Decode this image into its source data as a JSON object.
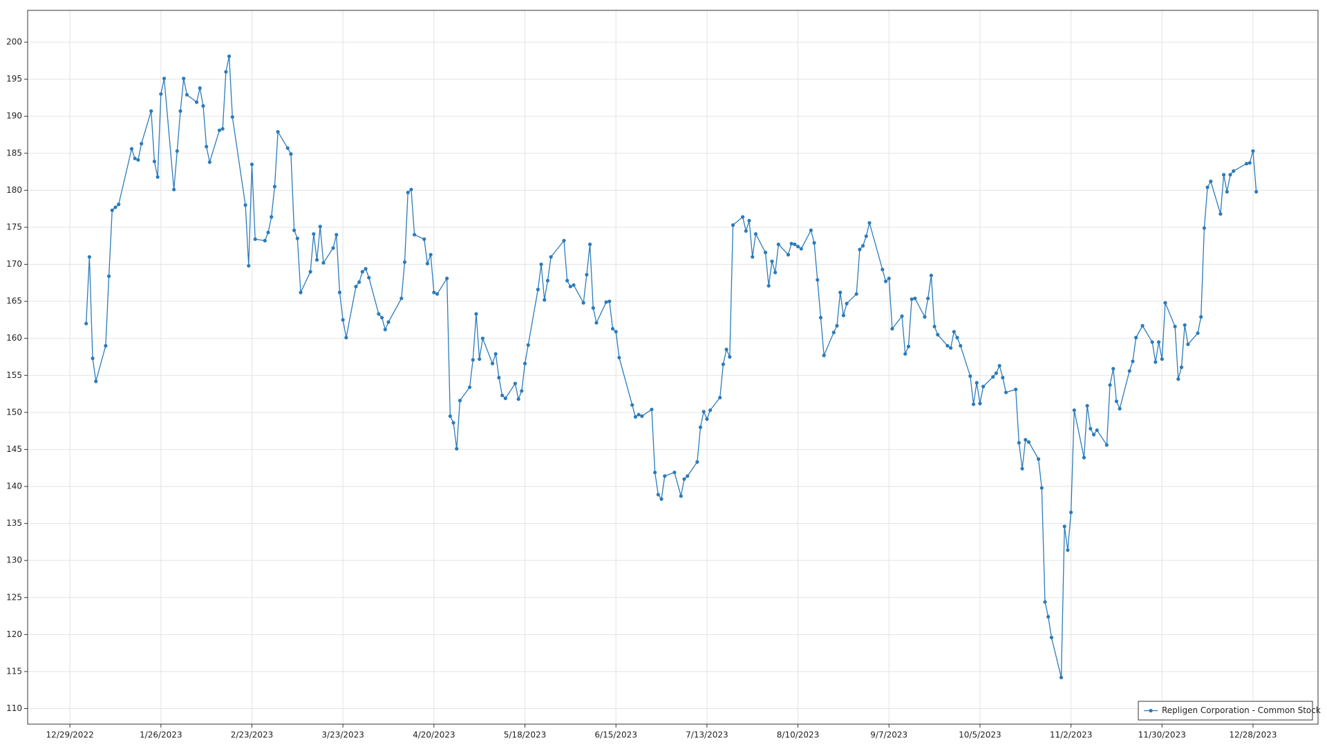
{
  "chart_data": {
    "type": "line",
    "x": [
      "1/3/2023",
      "1/4/2023",
      "1/5/2023",
      "1/6/2023",
      "1/9/2023",
      "1/10/2023",
      "1/11/2023",
      "1/12/2023",
      "1/13/2023",
      "1/17/2023",
      "1/18/2023",
      "1/19/2023",
      "1/20/2023",
      "1/23/2023",
      "1/24/2023",
      "1/25/2023",
      "1/26/2023",
      "1/27/2023",
      "1/30/2023",
      "1/31/2023",
      "2/1/2023",
      "2/2/2023",
      "2/3/2023",
      "2/6/2023",
      "2/7/2023",
      "2/8/2023",
      "2/9/2023",
      "2/10/2023",
      "2/13/2023",
      "2/14/2023",
      "2/15/2023",
      "2/16/2023",
      "2/17/2023",
      "2/21/2023",
      "2/22/2023",
      "2/23/2023",
      "2/24/2023",
      "2/27/2023",
      "2/28/2023",
      "3/1/2023",
      "3/2/2023",
      "3/3/2023",
      "3/6/2023",
      "3/7/2023",
      "3/8/2023",
      "3/9/2023",
      "3/10/2023",
      "3/13/2023",
      "3/14/2023",
      "3/15/2023",
      "3/16/2023",
      "3/17/2023",
      "3/20/2023",
      "3/21/2023",
      "3/22/2023",
      "3/23/2023",
      "3/24/2023",
      "3/27/2023",
      "3/28/2023",
      "3/29/2023",
      "3/30/2023",
      "3/31/2023",
      "4/3/2023",
      "4/4/2023",
      "4/5/2023",
      "4/6/2023",
      "4/10/2023",
      "4/11/2023",
      "4/12/2023",
      "4/13/2023",
      "4/14/2023",
      "4/17/2023",
      "4/18/2023",
      "4/19/2023",
      "4/20/2023",
      "4/21/2023",
      "4/24/2023",
      "4/25/2023",
      "4/26/2023",
      "4/27/2023",
      "4/28/2023",
      "5/1/2023",
      "5/2/2023",
      "5/3/2023",
      "5/4/2023",
      "5/5/2023",
      "5/8/2023",
      "5/9/2023",
      "5/10/2023",
      "5/11/2023",
      "5/12/2023",
      "5/15/2023",
      "5/16/2023",
      "5/17/2023",
      "5/18/2023",
      "5/19/2023",
      "5/22/2023",
      "5/23/2023",
      "5/24/2023",
      "5/25/2023",
      "5/26/2023",
      "5/30/2023",
      "5/31/2023",
      "6/1/2023",
      "6/2/2023",
      "6/5/2023",
      "6/6/2023",
      "6/7/2023",
      "6/8/2023",
      "6/9/2023",
      "6/12/2023",
      "6/13/2023",
      "6/14/2023",
      "6/15/2023",
      "6/16/2023",
      "6/20/2023",
      "6/21/2023",
      "6/22/2023",
      "6/23/2023",
      "6/26/2023",
      "6/27/2023",
      "6/28/2023",
      "6/29/2023",
      "6/30/2023",
      "7/3/2023",
      "7/5/2023",
      "7/6/2023",
      "7/7/2023",
      "7/10/2023",
      "7/11/2023",
      "7/12/2023",
      "7/13/2023",
      "7/14/2023",
      "7/17/2023",
      "7/18/2023",
      "7/19/2023",
      "7/20/2023",
      "7/21/2023",
      "7/24/2023",
      "7/25/2023",
      "7/26/2023",
      "7/27/2023",
      "7/28/2023",
      "7/31/2023",
      "8/1/2023",
      "8/2/2023",
      "8/3/2023",
      "8/4/2023",
      "8/7/2023",
      "8/8/2023",
      "8/9/2023",
      "8/10/2023",
      "8/11/2023",
      "8/14/2023",
      "8/15/2023",
      "8/16/2023",
      "8/17/2023",
      "8/18/2023",
      "8/21/2023",
      "8/22/2023",
      "8/23/2023",
      "8/24/2023",
      "8/25/2023",
      "8/28/2023",
      "8/29/2023",
      "8/30/2023",
      "8/31/2023",
      "9/1/2023",
      "9/5/2023",
      "9/6/2023",
      "9/7/2023",
      "9/8/2023",
      "9/11/2023",
      "9/12/2023",
      "9/13/2023",
      "9/14/2023",
      "9/15/2023",
      "9/18/2023",
      "9/19/2023",
      "9/20/2023",
      "9/21/2023",
      "9/22/2023",
      "9/25/2023",
      "9/26/2023",
      "9/27/2023",
      "9/28/2023",
      "9/29/2023",
      "10/2/2023",
      "10/3/2023",
      "10/4/2023",
      "10/5/2023",
      "10/6/2023",
      "10/9/2023",
      "10/10/2023",
      "10/11/2023",
      "10/12/2023",
      "10/13/2023",
      "10/16/2023",
      "10/17/2023",
      "10/18/2023",
      "10/19/2023",
      "10/20/2023",
      "10/23/2023",
      "10/24/2023",
      "10/25/2023",
      "10/26/2023",
      "10/27/2023",
      "10/30/2023",
      "10/31/2023",
      "11/1/2023",
      "11/2/2023",
      "11/3/2023",
      "11/6/2023",
      "11/7/2023",
      "11/8/2023",
      "11/9/2023",
      "11/10/2023",
      "11/13/2023",
      "11/14/2023",
      "11/15/2023",
      "11/16/2023",
      "11/17/2023",
      "11/20/2023",
      "11/21/2023",
      "11/22/2023",
      "11/24/2023",
      "11/27/2023",
      "11/28/2023",
      "11/29/2023",
      "11/30/2023",
      "12/1/2023",
      "12/4/2023",
      "12/5/2023",
      "12/6/2023",
      "12/7/2023",
      "12/8/2023",
      "12/11/2023",
      "12/12/2023",
      "12/13/2023",
      "12/14/2023",
      "12/15/2023",
      "12/18/2023",
      "12/19/2023",
      "12/20/2023",
      "12/21/2023",
      "12/22/2023",
      "12/26/2023",
      "12/27/2023",
      "12/28/2023",
      "12/29/2023"
    ],
    "series": [
      {
        "name": "Repligen Corporation - Common Stock",
        "color": "#2b7bba",
        "values": [
          162.0,
          171.0,
          157.3,
          154.2,
          159.0,
          168.4,
          177.3,
          177.7,
          178.1,
          185.6,
          184.3,
          184.1,
          186.3,
          190.7,
          183.9,
          181.8,
          193.0,
          195.1,
          180.1,
          185.3,
          190.7,
          195.1,
          192.9,
          191.9,
          193.8,
          191.4,
          185.9,
          183.8,
          188.1,
          188.3,
          196.0,
          198.1,
          189.9,
          178.0,
          169.8,
          183.5,
          173.4,
          173.2,
          174.3,
          176.4,
          180.5,
          187.9,
          185.7,
          184.9,
          174.6,
          173.5,
          166.2,
          169.0,
          174.1,
          170.6,
          175.1,
          170.2,
          172.2,
          174.0,
          166.2,
          162.5,
          160.1,
          167.0,
          167.6,
          169.0,
          169.4,
          168.2,
          163.3,
          162.8,
          161.2,
          162.2,
          165.4,
          170.3,
          179.7,
          180.1,
          174.0,
          173.4,
          170.1,
          171.3,
          166.2,
          166.0,
          168.1,
          149.5,
          148.6,
          145.1,
          151.6,
          153.4,
          157.1,
          163.3,
          157.2,
          160.0,
          156.6,
          157.9,
          154.7,
          152.3,
          151.9,
          153.9,
          151.8,
          152.9,
          156.6,
          159.1,
          166.6,
          170.0,
          165.2,
          167.8,
          171.0,
          173.2,
          167.8,
          167.0,
          167.2,
          164.8,
          168.6,
          172.7,
          164.1,
          162.1,
          164.9,
          165.0,
          161.3,
          160.9,
          157.4,
          151.0,
          149.4,
          149.7,
          149.5,
          150.4,
          141.9,
          138.9,
          138.3,
          141.4,
          141.9,
          138.7,
          141.0,
          141.4,
          143.3,
          148.0,
          150.1,
          149.1,
          150.3,
          152.0,
          156.5,
          158.5,
          157.5,
          175.3,
          176.4,
          174.5,
          175.9,
          171.0,
          174.1,
          171.6,
          167.1,
          170.4,
          168.9,
          172.7,
          171.3,
          172.8,
          172.7,
          172.4,
          172.1,
          174.6,
          172.9,
          167.9,
          162.8,
          157.7,
          160.8,
          161.7,
          166.2,
          163.1,
          164.7,
          166.0,
          172.0,
          172.5,
          173.8,
          175.6,
          169.3,
          167.7,
          168.1,
          161.3,
          163.0,
          157.9,
          158.9,
          165.3,
          165.4,
          162.9,
          165.4,
          168.5,
          161.6,
          160.5,
          159.0,
          158.7,
          160.9,
          160.1,
          159.0,
          154.9,
          151.1,
          154.0,
          151.2,
          153.5,
          154.8,
          155.3,
          156.3,
          154.7,
          152.7,
          153.1,
          145.9,
          142.4,
          146.3,
          146.0,
          143.7,
          139.8,
          124.4,
          122.4,
          119.6,
          114.2,
          134.6,
          131.4,
          136.5,
          150.3,
          143.9,
          150.9,
          147.8,
          147.0,
          147.6,
          145.6,
          153.7,
          155.9,
          151.5,
          150.5,
          155.6,
          156.9,
          160.1,
          161.7,
          159.5,
          156.8,
          159.5,
          157.2,
          164.8,
          161.6,
          154.5,
          156.1,
          161.8,
          159.2,
          160.7,
          162.9,
          174.9,
          180.4,
          181.2,
          176.8,
          182.1,
          179.8,
          182.1,
          182.6,
          183.6,
          183.7,
          185.3,
          179.8
        ]
      }
    ],
    "xlim": [
      "12/16/2022",
      "1/17/2024"
    ],
    "xticks": [
      "12/29/2022",
      "1/26/2023",
      "2/23/2023",
      "3/23/2023",
      "4/20/2023",
      "5/18/2023",
      "6/15/2023",
      "7/13/2023",
      "8/10/2023",
      "9/7/2023",
      "10/5/2023",
      "11/2/2023",
      "11/30/2023",
      "12/28/2023"
    ],
    "ylim": [
      107.9,
      204.3
    ],
    "yticks": [
      110,
      115,
      120,
      125,
      130,
      135,
      140,
      145,
      150,
      155,
      160,
      165,
      170,
      175,
      180,
      185,
      190,
      195,
      200
    ],
    "grid": true,
    "legend": "lower right"
  }
}
